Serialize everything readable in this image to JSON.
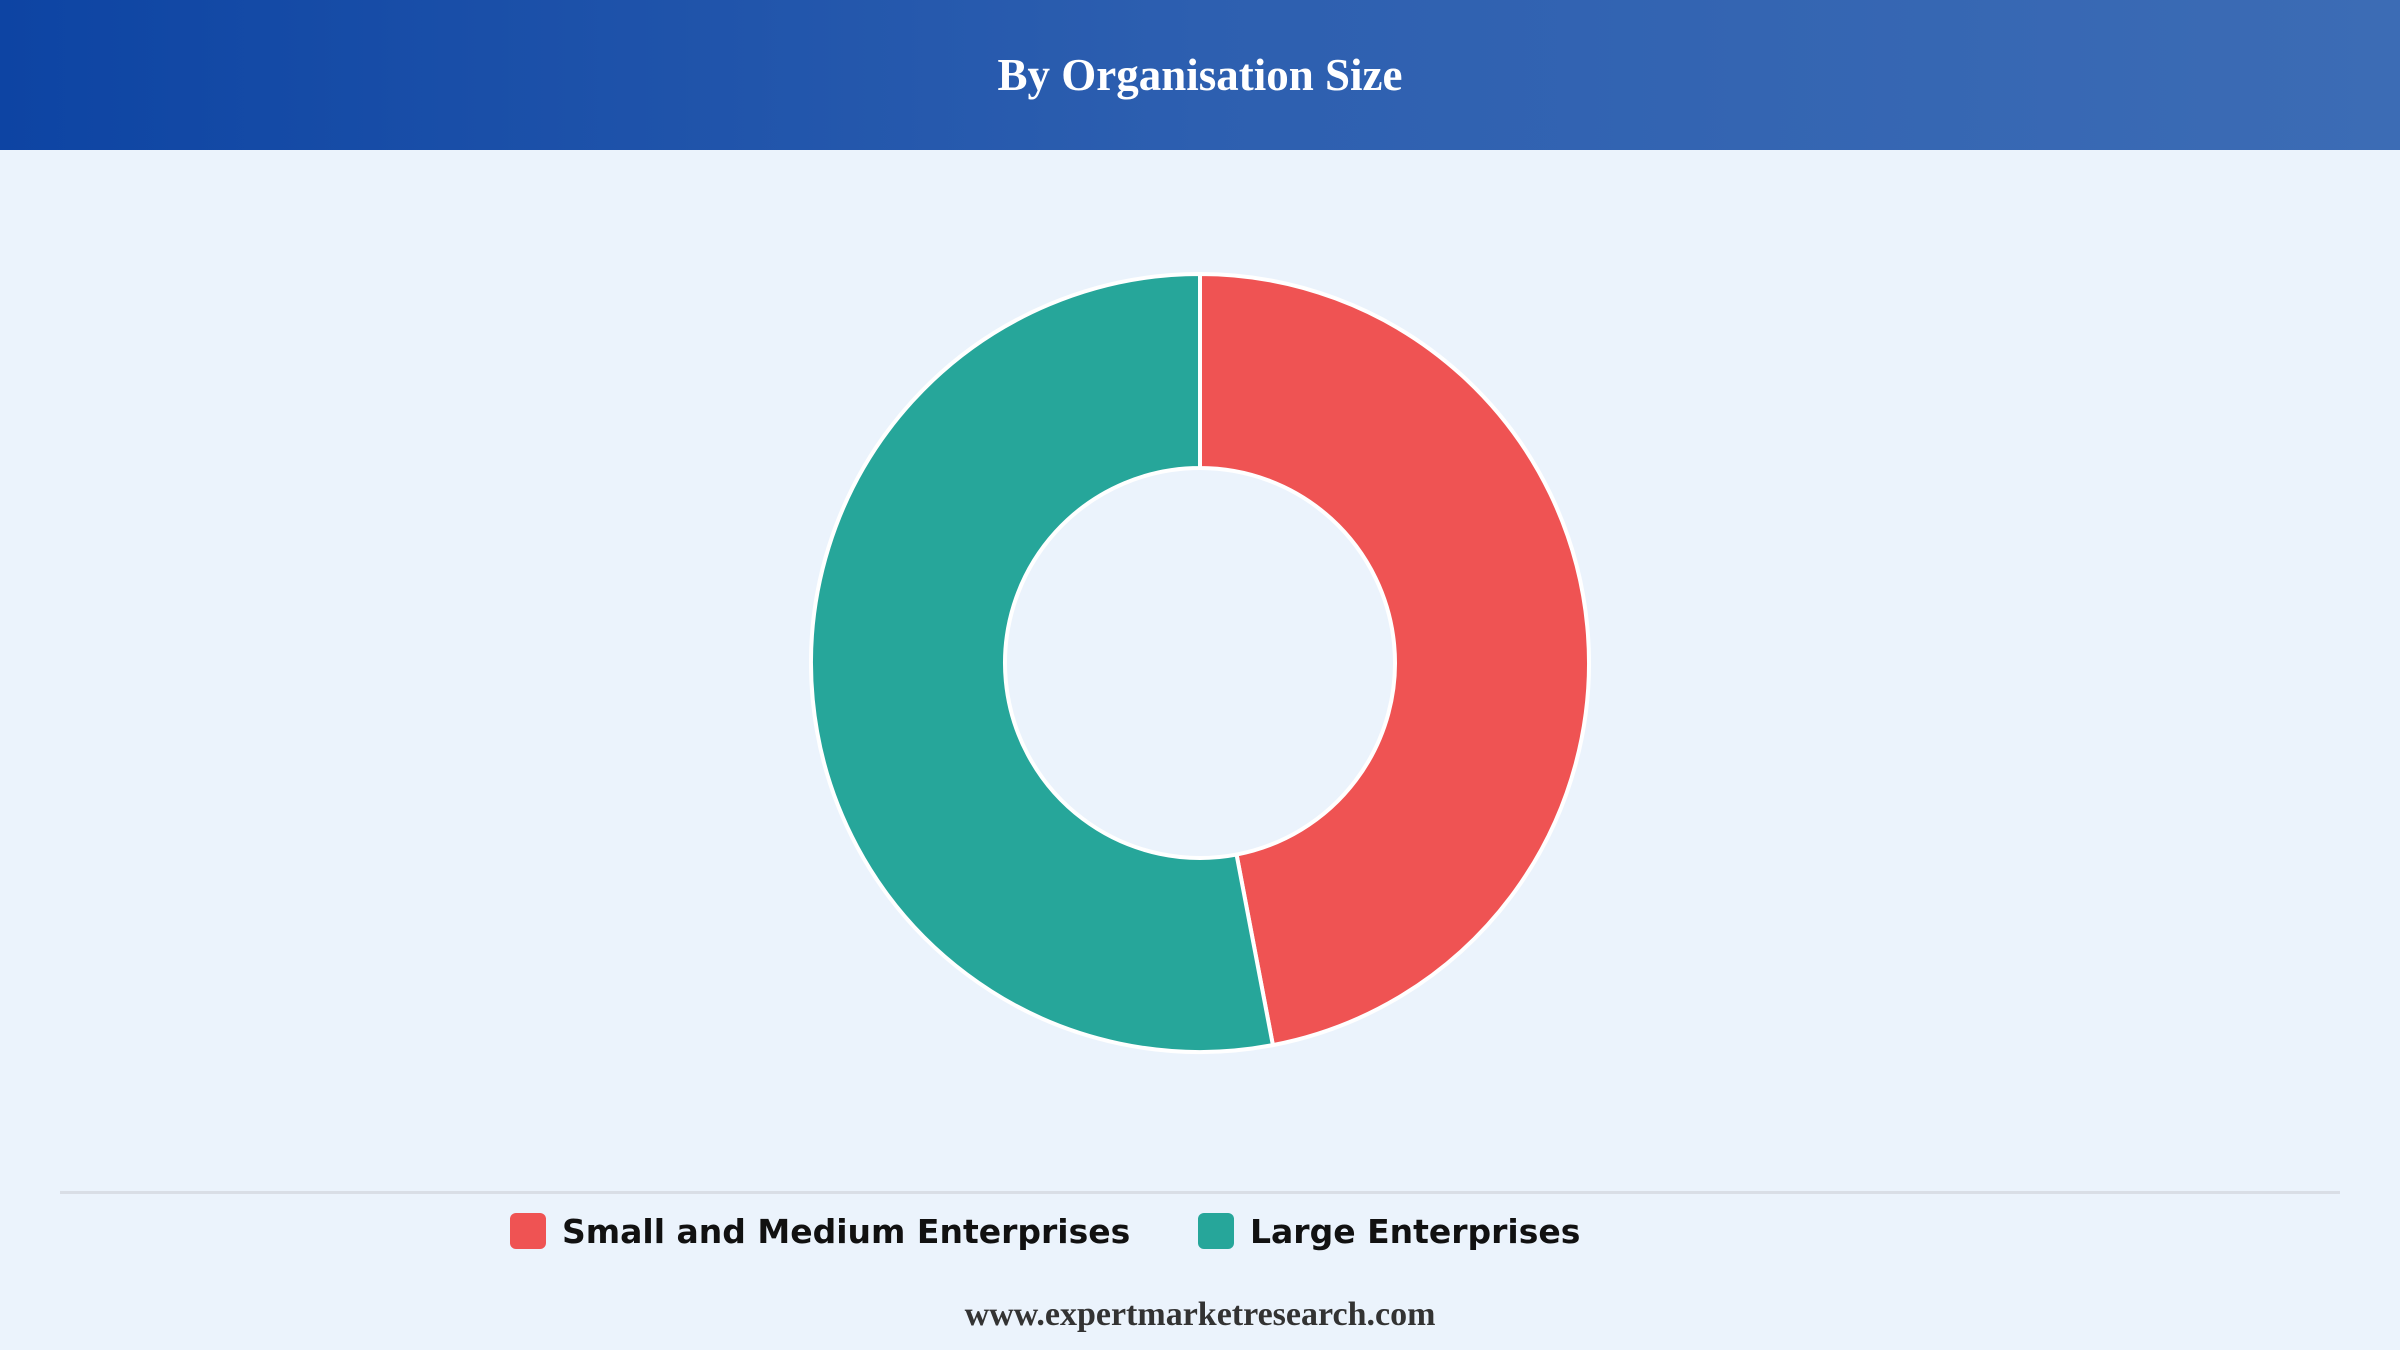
{
  "header": {
    "title": "By Organisation Size"
  },
  "chart_data": {
    "type": "pie",
    "variant": "donut",
    "title": "By Organisation Size",
    "start_angle_deg": 0,
    "direction": "clockwise",
    "series": [
      {
        "name": "Small and Medium Enterprises",
        "value": 47,
        "color": "#ef5353"
      },
      {
        "name": "Large Enterprises",
        "value": 53,
        "color": "#26a69a"
      }
    ],
    "legend_position": "bottom"
  },
  "footer": {
    "website": "www.expertmarketresearch.com"
  }
}
